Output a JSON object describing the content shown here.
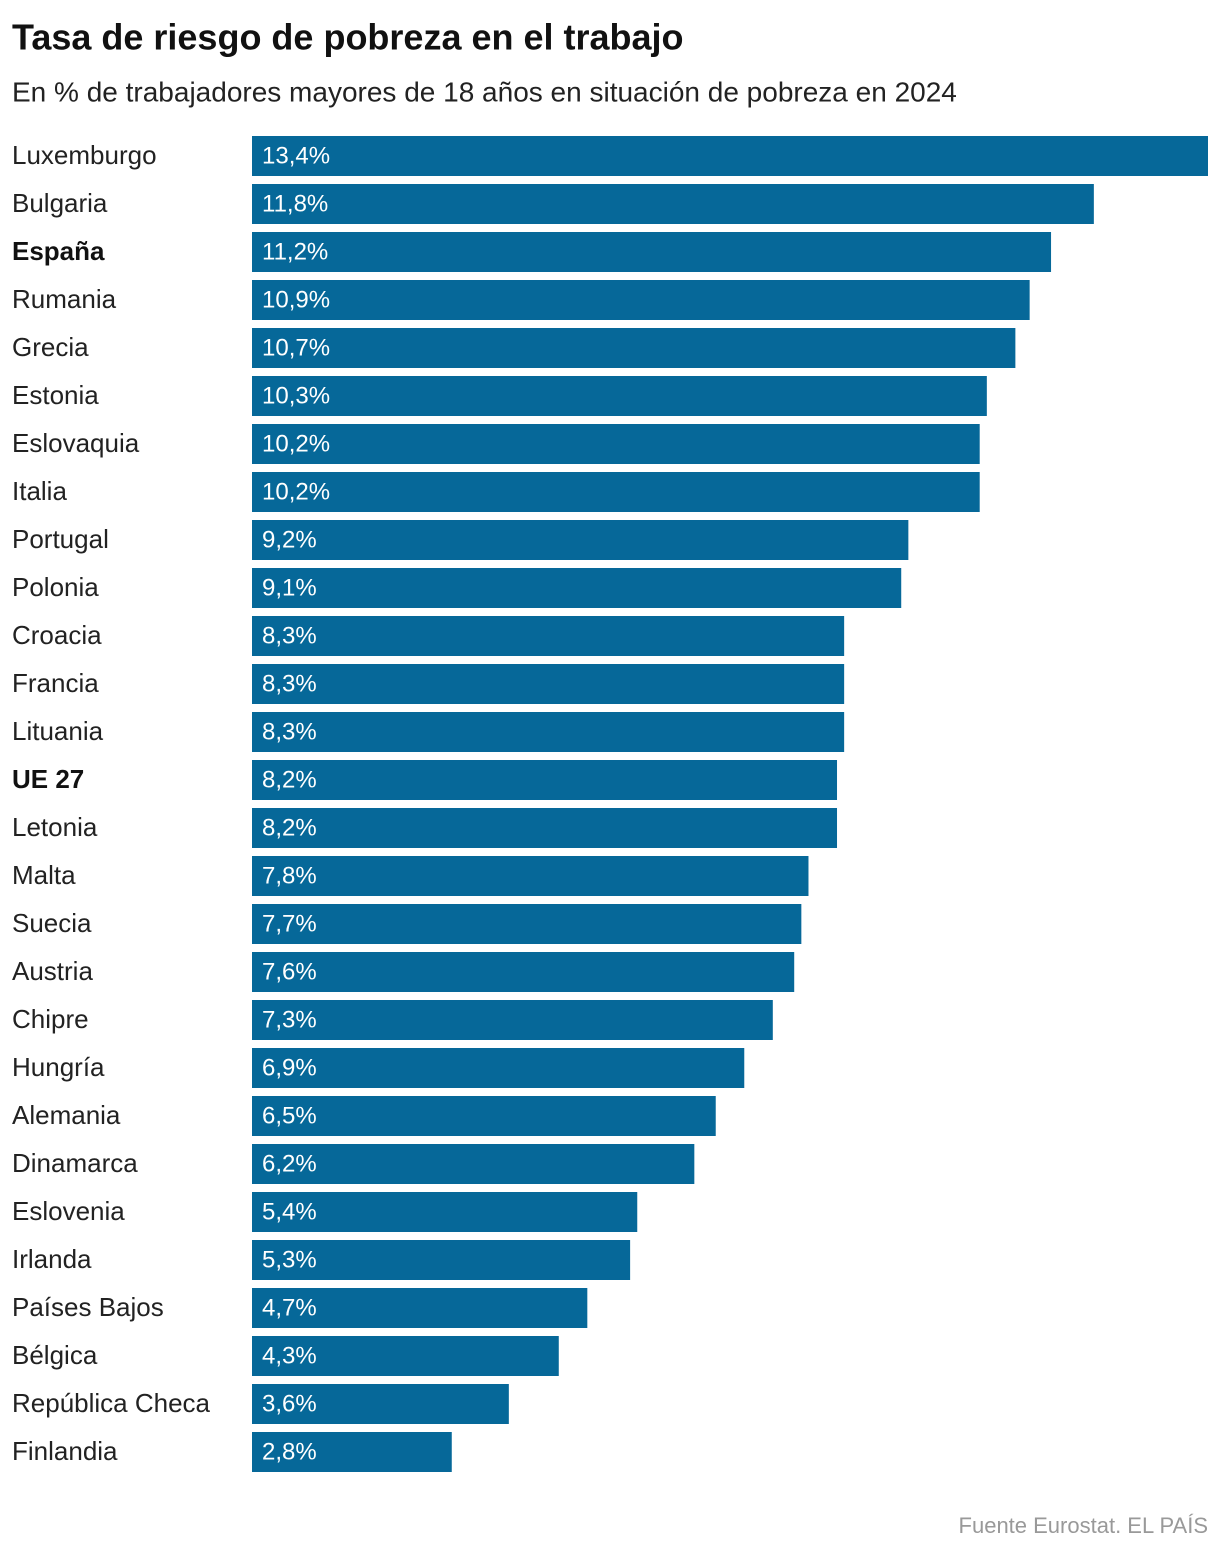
{
  "chart_data": {
    "type": "bar",
    "orientation": "horizontal",
    "title": "Tasa de riesgo de pobreza en el trabajo",
    "subtitle": "En % de trabajadores mayores de 18 años en situación de pobreza en 2024",
    "source": "Fuente Eurostat. EL PAÍS",
    "color": "#066899",
    "highlight": [
      "España",
      "UE 27"
    ],
    "categories": [
      "Luxemburgo",
      "Bulgaria",
      "España",
      "Rumania",
      "Grecia",
      "Estonia",
      "Eslovaquia",
      "Italia",
      "Portugal",
      "Polonia",
      "Croacia",
      "Francia",
      "Lituania",
      "UE 27",
      "Letonia",
      "Malta",
      "Suecia",
      "Austria",
      "Chipre",
      "Hungría",
      "Alemania",
      "Dinamarca",
      "Eslovenia",
      "Irlanda",
      "Países Bajos",
      "Bélgica",
      "República Checa",
      "Finlandia"
    ],
    "values": [
      13.4,
      11.8,
      11.2,
      10.9,
      10.7,
      10.3,
      10.2,
      10.2,
      9.2,
      9.1,
      8.3,
      8.3,
      8.3,
      8.2,
      8.2,
      7.8,
      7.7,
      7.6,
      7.3,
      6.9,
      6.5,
      6.2,
      5.4,
      5.3,
      4.7,
      4.3,
      3.6,
      2.8
    ],
    "value_labels": [
      "13,4%",
      "11,8%",
      "11,2%",
      "10,9%",
      "10,7%",
      "10,3%",
      "10,2%",
      "10,2%",
      "9,2%",
      "9,1%",
      "8,3%",
      "8,3%",
      "8,3%",
      "8,2%",
      "8,2%",
      "7,8%",
      "7,7%",
      "7,6%",
      "7,3%",
      "6,9%",
      "6,5%",
      "6,2%",
      "5,4%",
      "5,3%",
      "4,7%",
      "4,3%",
      "3,6%",
      "2,8%"
    ]
  }
}
